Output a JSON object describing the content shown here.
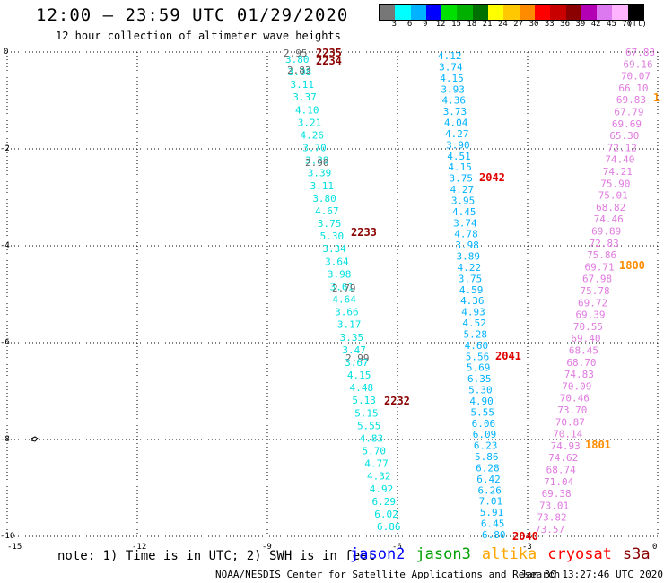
{
  "header": {
    "title": "12:00 – 23:59 UTC 01/29/2020",
    "subtitle": "12 hour collection of altimeter wave heights"
  },
  "colorbar": {
    "colors": [
      "#777777",
      "#00ffff",
      "#00b2ff",
      "#0000ff",
      "#00e000",
      "#00b000",
      "#007000",
      "#ffff00",
      "#ffc800",
      "#ff8c00",
      "#ff0000",
      "#c80000",
      "#8b0000",
      "#b400b4",
      "#dc78f0",
      "#ffb4ff",
      "#000000"
    ],
    "ticks": [
      "3",
      "6",
      "9",
      "12",
      "15",
      "18",
      "21",
      "24",
      "27",
      "30",
      "33",
      "36",
      "39",
      "42",
      "45",
      "70",
      "(ft)"
    ]
  },
  "axes": {
    "x_ticks": [
      "-15",
      "-12",
      "-9",
      "-6",
      "-3",
      "0"
    ],
    "y_ticks": [
      "0",
      "-2",
      "-4",
      "-6",
      "-8",
      "-10"
    ]
  },
  "passes": {
    "jason2": {
      "color": "#00b2ff",
      "values": [
        "4.12",
        "3.74",
        "4.15",
        "3.93",
        "4.36",
        "3.73",
        "4.04",
        "4.27",
        "3.90",
        "4.51",
        "4.15",
        "3.75",
        "4.27",
        "3.95",
        "4.45",
        "3.74",
        "4.78",
        "3.98",
        "3.89",
        "4.22",
        "3.75",
        "4.59",
        "4.36",
        "4.93",
        "4.52",
        "5.28",
        "4.60",
        "5.56",
        "5.69",
        "6.35",
        "5.30",
        "4.90",
        "5.55",
        "6.06",
        "6.09",
        "6.23",
        "5.86",
        "6.28",
        "6.42",
        "6.26",
        "7.01",
        "5.91",
        "6.45",
        "6.80"
      ]
    },
    "cryosat_cyan": {
      "color": "#00e0e0",
      "values": [
        "3.80",
        "3.08",
        "3.11",
        "3.37",
        "4.10",
        "3.21",
        "4.26",
        "3.70",
        "3.39",
        "3.39",
        "3.11",
        "3.80",
        "4.67",
        "3.75",
        "5.30",
        "3.34",
        "3.64",
        "3.98",
        "3.61",
        "4.64",
        "3.66",
        "3.17",
        "3.35",
        "3.47",
        "3.67",
        "4.15",
        "4.48",
        "5.13",
        "5.15",
        "5.55",
        "4.83",
        "5.70",
        "4.77",
        "4.32",
        "4.92",
        "6.29",
        "6.02",
        "6.86"
      ]
    },
    "grey_values": [
      "2.95",
      "2.83",
      "2.90",
      "2.79",
      "2.99"
    ],
    "s3a_pink": {
      "color": "#e07ae0",
      "values": [
        "67.83",
        "69.16",
        "70.07",
        "66.10",
        "69.83",
        "67.79",
        "69.69",
        "65.30",
        "72.12",
        "74.40",
        "74.21",
        "75.90",
        "75.01",
        "68.82",
        "74.46",
        "69.89",
        "72.83",
        "75.86",
        "69.71",
        "67.98",
        "75.78",
        "69.72",
        "69.39",
        "70.55",
        "69.40",
        "68.45",
        "68.70",
        "74.83",
        "70.09",
        "70.46",
        "73.70",
        "70.87",
        "70.14",
        "74.93",
        "74.62",
        "68.74",
        "71.04",
        "69.38",
        "73.01",
        "73.82",
        "73.57"
      ]
    }
  },
  "time_labels": [
    {
      "text": "2235",
      "color": "#8b0000"
    },
    {
      "text": "2234",
      "color": "#8b0000"
    },
    {
      "text": "2233",
      "color": "#8b0000"
    },
    {
      "text": "2232",
      "color": "#8b0000"
    },
    {
      "text": "2042",
      "color": "#e00000"
    },
    {
      "text": "2041",
      "color": "#e00000"
    },
    {
      "text": "2040",
      "color": "#e00000"
    },
    {
      "text": "1800",
      "color": "#ff8c00"
    },
    {
      "text": "1801",
      "color": "#ff8c00"
    },
    {
      "text": "1",
      "color": "#ff8c00"
    }
  ],
  "footer": {
    "note": "note: 1) Time is in UTC; 2) SWH is in feet",
    "legend": [
      {
        "label": "jason2",
        "color": "#0000ff"
      },
      {
        "label": "jason3",
        "color": "#00a000"
      },
      {
        "label": "altika",
        "color": "#ffa500"
      },
      {
        "label": "cryosat",
        "color": "#ff0000"
      },
      {
        "label": "s3a",
        "color": "#8b0000"
      }
    ],
    "credit": "NOAA/NESDIS Center for Satellite Applications and Research",
    "timestamp": "Jan 30 13:27:46 UTC 2020"
  }
}
